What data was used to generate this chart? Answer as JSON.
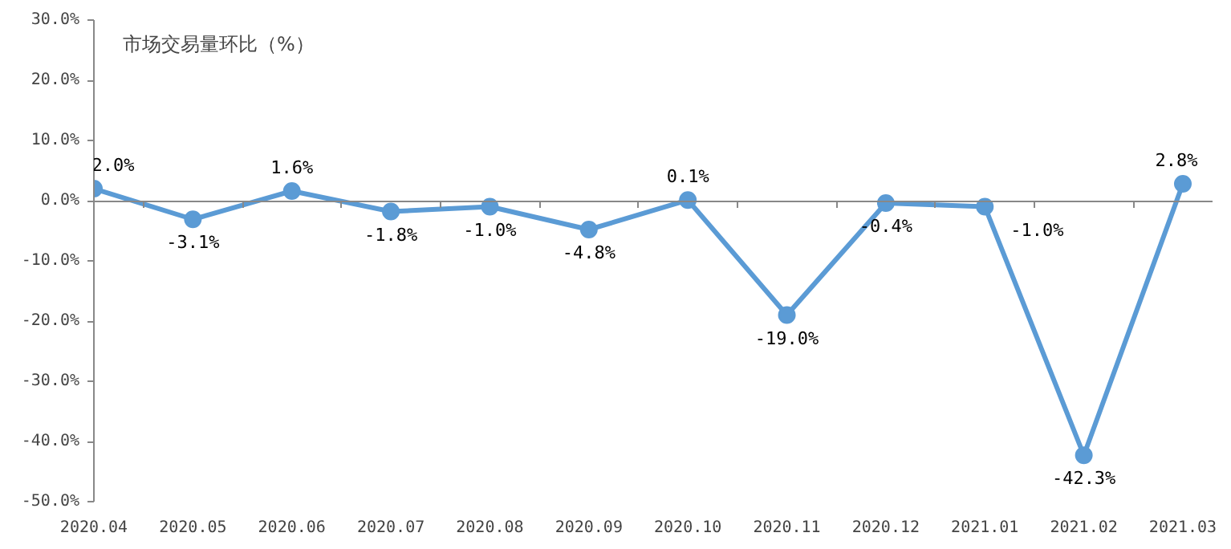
{
  "chart_data": {
    "type": "line",
    "title": "市场交易量环比（%）",
    "categories": [
      "2020.04",
      "2020.05",
      "2020.06",
      "2020.07",
      "2020.08",
      "2020.09",
      "2020.10",
      "2020.11",
      "2020.12",
      "2021.01",
      "2021.02",
      "2021.03"
    ],
    "series": [
      {
        "color": "#5b9bd5",
        "values": [
          2.0,
          -3.1,
          1.6,
          -1.8,
          -1.0,
          -4.8,
          0.1,
          -19.0,
          -0.4,
          -1.0,
          -42.3,
          2.8
        ],
        "value_labels": [
          "2.0%",
          "-3.1%",
          "1.6%",
          "-1.8%",
          "-1.0%",
          "-4.8%",
          "0.1%",
          "-19.0%",
          "-0.4%",
          "-1.0%",
          "-42.3%",
          "2.8%"
        ]
      }
    ],
    "ylim": [
      -50,
      30
    ],
    "yticks": [
      {
        "value": -50,
        "label": "-50.0%"
      },
      {
        "value": -40,
        "label": "-40.0%"
      },
      {
        "value": -30,
        "label": "-30.0%"
      },
      {
        "value": -20,
        "label": "-20.0%"
      },
      {
        "value": -10,
        "label": "-10.0%"
      },
      {
        "value": 0,
        "label": "0.0%"
      },
      {
        "value": 10,
        "label": "10.0%"
      },
      {
        "value": 20,
        "label": "20.0%"
      },
      {
        "value": 30,
        "label": "30.0%"
      }
    ],
    "marker": "circle",
    "line_style": "solid"
  }
}
